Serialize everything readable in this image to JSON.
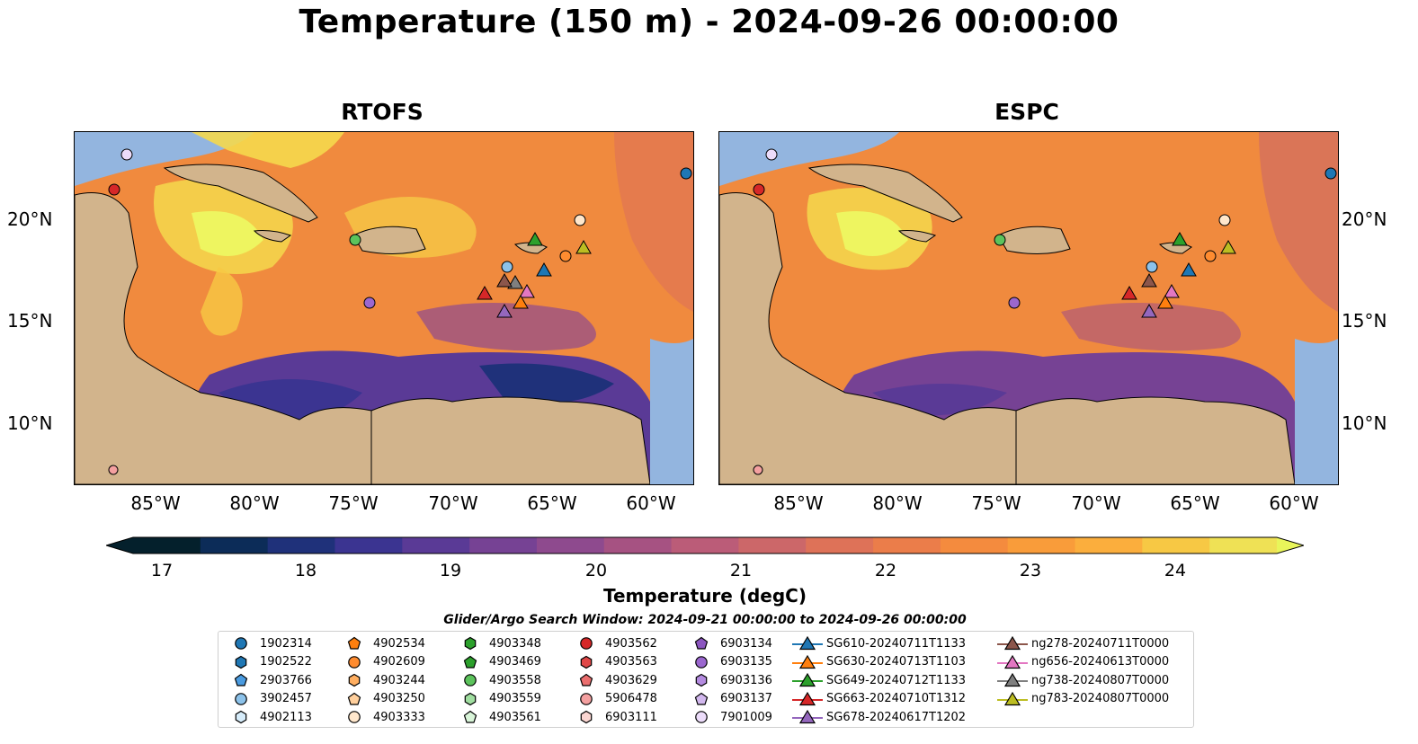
{
  "title": "Temperature (150 m) - 2024-09-26 00:00:00",
  "panels": [
    {
      "name": "RTOFS"
    },
    {
      "name": "ESPC"
    }
  ],
  "lat_ticks": [
    "20°N",
    "15°N",
    "10°N"
  ],
  "lon_ticks": [
    "85°W",
    "80°W",
    "75°W",
    "70°W",
    "65°W",
    "60°W"
  ],
  "colorbar": {
    "label": "Temperature (degC)",
    "ticks": [
      "17",
      "18",
      "19",
      "20",
      "21",
      "22",
      "23",
      "24"
    ],
    "colors": [
      "#04202c",
      "#0c2c58",
      "#1f317a",
      "#3b3491",
      "#5a3a96",
      "#764294",
      "#8e4a8e",
      "#a65282",
      "#bb5c78",
      "#cc6769",
      "#de7258",
      "#eb7d4a",
      "#f48b3e",
      "#f99c3a",
      "#fbae3d",
      "#f7c844",
      "#efe155"
    ],
    "under_color": "#04202c",
    "over_color": "#e8f55a"
  },
  "search_window": "Glider/Argo Search Window: 2024-09-21 00:00:00 to 2024-09-26 00:00:00",
  "legend": {
    "columns": [
      [
        {
          "id": "1902314",
          "marker": "circle",
          "color": "#1f77b4"
        },
        {
          "id": "1902522",
          "marker": "hexagon",
          "color": "#1f77b4"
        },
        {
          "id": "2903766",
          "marker": "pentagon",
          "color": "#4a9be0"
        },
        {
          "id": "3902457",
          "marker": "circle",
          "color": "#8cc2ea"
        },
        {
          "id": "4902113",
          "marker": "hexagon",
          "color": "#d6ecfa"
        }
      ],
      [
        {
          "id": "4902534",
          "marker": "pentagon",
          "color": "#ff7f0e"
        },
        {
          "id": "4902609",
          "marker": "circle",
          "color": "#ff8c30"
        },
        {
          "id": "4903244",
          "marker": "hexagon",
          "color": "#ffae60"
        },
        {
          "id": "4903250",
          "marker": "pentagon",
          "color": "#ffcf9c"
        },
        {
          "id": "4903333",
          "marker": "circle",
          "color": "#ffe7cc"
        }
      ],
      [
        {
          "id": "4903348",
          "marker": "hexagon",
          "color": "#2ca02c"
        },
        {
          "id": "4903469",
          "marker": "pentagon",
          "color": "#2ca02c"
        },
        {
          "id": "4903558",
          "marker": "circle",
          "color": "#5cc35c"
        },
        {
          "id": "4903559",
          "marker": "hexagon",
          "color": "#a0dea0"
        },
        {
          "id": "4903561",
          "marker": "pentagon",
          "color": "#d9f5d9"
        }
      ],
      [
        {
          "id": "4903562",
          "marker": "circle",
          "color": "#d62728"
        },
        {
          "id": "4903563",
          "marker": "hexagon",
          "color": "#e04848"
        },
        {
          "id": "4903629",
          "marker": "pentagon",
          "color": "#eb6e6e"
        },
        {
          "id": "5906478",
          "marker": "circle",
          "color": "#f4a0a0"
        },
        {
          "id": "6903111",
          "marker": "hexagon",
          "color": "#fbd6d2"
        }
      ],
      [
        {
          "id": "6903134",
          "marker": "pentagon",
          "color": "#8c56c0"
        },
        {
          "id": "6903135",
          "marker": "circle",
          "color": "#9b67cf"
        },
        {
          "id": "6903136",
          "marker": "hexagon",
          "color": "#b48be0"
        },
        {
          "id": "6903137",
          "marker": "pentagon",
          "color": "#d2b8ee"
        },
        {
          "id": "7901009",
          "marker": "circle",
          "color": "#ecdcfa"
        }
      ],
      [
        {
          "id": "SG610-20240711T1133",
          "marker": "triangle",
          "color": "#1f77b4"
        },
        {
          "id": "SG630-20240713T1103",
          "marker": "triangle",
          "color": "#ff7f0e"
        },
        {
          "id": "SG649-20240712T1133",
          "marker": "triangle",
          "color": "#2ca02c"
        },
        {
          "id": "SG663-20240710T1312",
          "marker": "triangle",
          "color": "#d62728"
        },
        {
          "id": "SG678-20240617T1202",
          "marker": "triangle",
          "color": "#9467bd"
        }
      ],
      [
        {
          "id": "ng278-20240711T0000",
          "marker": "triangle",
          "color": "#8c564b"
        },
        {
          "id": "ng656-20240613T0000",
          "marker": "triangle",
          "color": "#e377c2"
        },
        {
          "id": "ng738-20240807T0000",
          "marker": "triangle",
          "color": "#7f7f7f"
        },
        {
          "id": "ng783-20240807T0000",
          "marker": "triangle",
          "color": "#bcbd22"
        }
      ]
    ]
  }
}
